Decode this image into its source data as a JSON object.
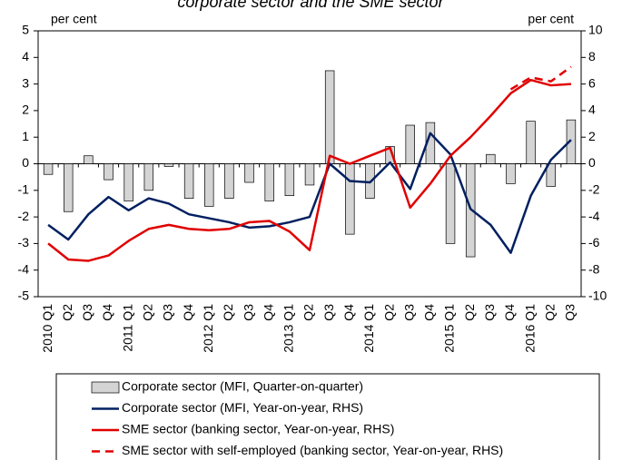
{
  "chart_data": {
    "type": "bar",
    "title": "corporate sector and the SME sector",
    "y_label": "per cent",
    "y2_label": "per cent",
    "categories": [
      "2010 Q1",
      "Q2",
      "Q3",
      "Q4",
      "2011 Q1",
      "Q2",
      "Q3",
      "Q4",
      "2012 Q1",
      "Q2",
      "Q3",
      "Q4",
      "2013 Q1",
      "Q2",
      "Q3",
      "Q4",
      "2014 Q1",
      "Q2",
      "Q3",
      "Q4",
      "2015 Q1",
      "Q2",
      "Q3",
      "Q4",
      "2016 Q1",
      "Q2",
      "Q3"
    ],
    "ylim": [
      -5,
      5
    ],
    "yticks": [
      -5,
      -4,
      -3,
      -2,
      -1,
      0,
      1,
      2,
      3,
      4,
      5
    ],
    "y2lim": [
      -10,
      10
    ],
    "y2ticks": [
      -10,
      -8,
      -6,
      -4,
      -2,
      0,
      2,
      4,
      6,
      8,
      10
    ],
    "series": [
      {
        "name": "Corporate sector (MFI, Quarter-on-quarter)",
        "kind": "bar",
        "color": "#d4d4d4",
        "values": [
          -0.4,
          -1.8,
          0.3,
          -0.6,
          -1.4,
          -1.0,
          -0.1,
          -1.3,
          -1.6,
          -1.3,
          -0.7,
          -1.4,
          -1.2,
          -0.8,
          3.5,
          -2.65,
          -1.3,
          0.65,
          1.45,
          1.55,
          -3.0,
          -3.5,
          0.35,
          -0.75,
          1.6,
          -0.85,
          1.65
        ]
      },
      {
        "name": "Corporate sector (MFI, Year-on-year, RHS)",
        "kind": "line",
        "axis": "y2",
        "color": "#002060",
        "values": [
          -4.6,
          -5.7,
          -3.8,
          -2.5,
          -3.5,
          -2.6,
          -3.0,
          -3.8,
          -4.1,
          -4.4,
          -4.8,
          -4.7,
          -4.4,
          -4.0,
          0.0,
          -1.3,
          -1.4,
          0.1,
          -1.9,
          2.3,
          0.7,
          -3.4,
          -4.6,
          -6.7,
          -2.4,
          0.3,
          1.8
        ]
      },
      {
        "name": "SME sector (banking sector, Year-on-year, RHS)",
        "kind": "line",
        "axis": "y2",
        "color": "#e00000",
        "values": [
          -6.0,
          -7.2,
          -7.3,
          -6.9,
          -5.8,
          -4.9,
          -4.6,
          -4.9,
          -5.0,
          -4.9,
          -4.4,
          -4.3,
          -5.1,
          -6.5,
          0.6,
          0.0,
          0.6,
          1.2,
          -3.3,
          -1.5,
          0.6,
          2.0,
          3.6,
          5.3,
          6.3,
          5.9,
          6.0
        ]
      },
      {
        "name": "SME sector with self-employed (banking sector, Year-on-year, RHS)",
        "kind": "line",
        "dashed": true,
        "axis": "y2",
        "color": "#e00000",
        "values": [
          null,
          null,
          null,
          null,
          null,
          null,
          null,
          null,
          null,
          null,
          null,
          null,
          null,
          null,
          null,
          null,
          null,
          null,
          null,
          null,
          null,
          null,
          null,
          5.6,
          6.5,
          6.2,
          7.3
        ]
      }
    ]
  }
}
